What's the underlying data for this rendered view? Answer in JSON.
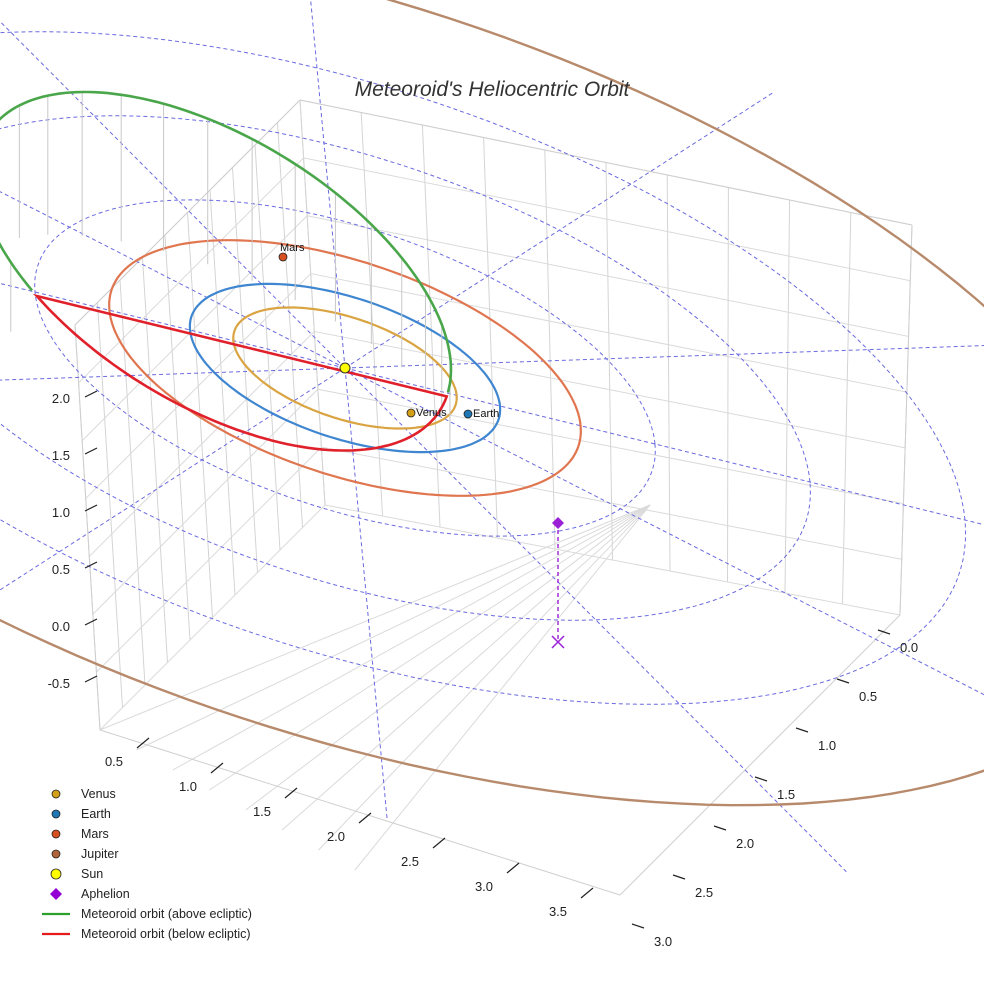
{
  "chart_data": {
    "type": "scatter3d",
    "title": "Meteoroid's Heliocentric Orbit",
    "x_ticks": [
      "0.5",
      "1.0",
      "1.5",
      "2.0",
      "2.5",
      "3.0",
      "3.5"
    ],
    "y_ticks": [
      "0.0",
      "0.5",
      "1.0",
      "1.5",
      "2.0",
      "2.5",
      "3.0"
    ],
    "z_ticks": [
      "-0.5",
      "0.0",
      "0.5",
      "1.0",
      "1.5",
      "2.0"
    ],
    "ecliptic_grid_radii_au": [
      1,
      2,
      3,
      4,
      5.2
    ],
    "planet_orbit_radii_au": {
      "Venus": 0.72,
      "Earth": 1.0,
      "Mars": 1.52,
      "Jupiter": 5.2
    },
    "planet_labels": [
      "Mars",
      "Venus",
      "Earth"
    ],
    "legend": [
      {
        "label": "Venus",
        "marker": "circle",
        "color": "#d4a017"
      },
      {
        "label": "Earth",
        "marker": "circle",
        "color": "#1f77b4"
      },
      {
        "label": "Mars",
        "marker": "circle",
        "color": "#d8501f"
      },
      {
        "label": "Jupiter",
        "marker": "circle",
        "color": "#b0643c"
      },
      {
        "label": "Sun",
        "marker": "circle",
        "color": "#ffff00"
      },
      {
        "label": "Aphelion",
        "marker": "diamond",
        "color": "#9400d3"
      },
      {
        "label": "Meteoroid orbit (above ecliptic)",
        "marker": "line",
        "color": "#2ca02c"
      },
      {
        "label": "Meteoroid orbit (below ecliptic)",
        "marker": "line",
        "color": "#e41a1c"
      }
    ],
    "colors": {
      "venus_orbit": "#d9a441",
      "earth_orbit": "#3f86d0",
      "mars_orbit": "#e07650",
      "jupiter_orbit": "#b88a6c",
      "above": "#4aa64a",
      "below": "#e0202a",
      "aphelion": "#9b1fd6",
      "grid": "#6a6ae0"
    }
  }
}
